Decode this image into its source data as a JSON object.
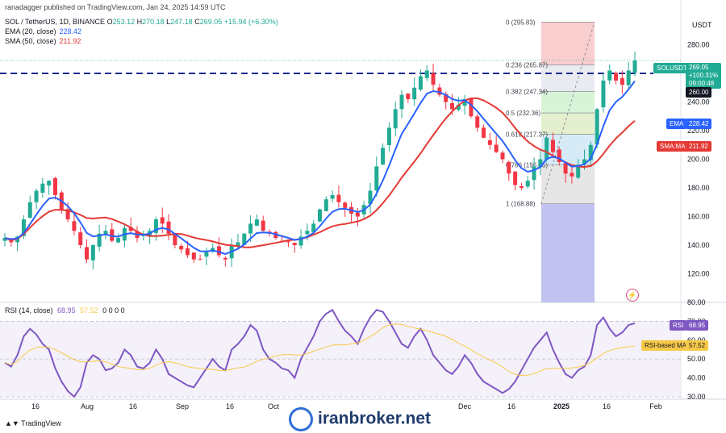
{
  "header": {
    "credit": "ranadagger published on TradingView.com, Jan 24, 2025 14:59 UTC",
    "symbol": "SOL / TetherUS, 1D, BINANCE",
    "ohlc": [
      {
        "label": "O",
        "value": "253.12"
      },
      {
        "label": "H",
        "value": "270.18"
      },
      {
        "label": "L",
        "value": "247.18"
      },
      {
        "label": "C",
        "value": "269.05"
      }
    ],
    "change": "+15.94 (+6.30%)",
    "ema_label": "EMA (20, close)",
    "ema_value": "228.42",
    "sma_label": "SMA (50, close)",
    "sma_value": "211.92",
    "currency": "USDT"
  },
  "price_tags": {
    "symbol_tag": "SOLUSDT",
    "last_price": "269.05",
    "change_pct": "+100.31%",
    "countdown": "09:00:48",
    "level_260": "260.00",
    "ema_tag": "EMA",
    "ema_value": "228.42",
    "sma_tag": "SMA:MA",
    "sma_value": "211.92",
    "rsi_tag": "RSI",
    "rsi_value": "68.95",
    "rsi_ma_tag": "RSI-based MA",
    "rsi_ma_value": "57.52"
  },
  "rsi_header": {
    "label": "RSI (14, close)",
    "rsi": "68.95",
    "ma": "57.52",
    "extra": "0 0 0 0"
  },
  "footer": {
    "tradingview": "TradingView",
    "watermark": "iranbroker.net"
  },
  "colors": {
    "up": "#22ab94",
    "down": "#f23645",
    "ema": "#2962ff",
    "sma": "#e53935",
    "rsi": "#7e57c2",
    "rsi_ma": "#f7c948"
  },
  "chart_data": [
    {
      "type": "candlestick",
      "title": "SOL / TetherUS, 1D, BINANCE",
      "ylabel": "USDT",
      "ylim": [
        100,
        300
      ],
      "yticks": [
        120,
        140,
        160,
        180,
        200,
        220,
        240,
        260,
        280
      ],
      "xticks": [
        "16",
        "Aug",
        "16",
        "Sep",
        "16",
        "Oct",
        "Dec",
        "16",
        "2025",
        "16",
        "Feb"
      ],
      "x_range": "Jul 8, 2024 – Jan 24, 2025 (daily)",
      "ohlc_close_path": [
        145,
        142,
        146,
        158,
        170,
        178,
        183,
        185,
        175,
        165,
        158,
        150,
        140,
        130,
        140,
        148,
        150,
        143,
        145,
        152,
        150,
        145,
        147,
        150,
        158,
        155,
        148,
        140,
        137,
        133,
        130,
        130,
        135,
        138,
        133,
        130,
        140,
        142,
        148,
        155,
        158,
        150,
        148,
        145,
        143,
        142,
        140,
        146,
        150,
        155,
        165,
        172,
        175,
        170,
        166,
        162,
        160,
        168,
        178,
        195,
        208,
        222,
        235,
        245,
        242,
        250,
        258,
        262,
        252,
        245,
        240,
        235,
        238,
        242,
        230,
        222,
        215,
        210,
        205,
        200,
        190,
        182,
        180,
        185,
        195,
        200,
        215,
        205,
        198,
        190,
        188,
        196,
        200,
        210,
        235,
        255,
        262,
        255,
        252,
        262,
        269.05
      ],
      "dashed_resistance": 260,
      "fibonacci": [
        {
          "ratio": "0",
          "price": 295.83
        },
        {
          "ratio": "0.236",
          "price": 265.87
        },
        {
          "ratio": "0.382",
          "price": 247.34
        },
        {
          "ratio": "0.5",
          "price": 232.36
        },
        {
          "ratio": "0.618",
          "price": 217.37
        },
        {
          "ratio": "0.786",
          "price": 196.05
        },
        {
          "ratio": "1",
          "price": 168.88
        }
      ],
      "series": [
        {
          "name": "EMA (20, close)",
          "last": 228.42
        },
        {
          "name": "SMA (50, close)",
          "last": 211.92
        }
      ]
    },
    {
      "type": "line",
      "title": "RSI (14, close)",
      "ylim": [
        30,
        80
      ],
      "yticks": [
        30,
        40,
        50,
        60,
        70,
        80
      ],
      "bands": [
        30,
        70
      ],
      "series": [
        {
          "name": "RSI",
          "last": 68.95,
          "values": [
            48,
            46,
            52,
            62,
            66,
            63,
            58,
            55,
            45,
            38,
            33,
            30,
            35,
            48,
            52,
            50,
            44,
            45,
            48,
            55,
            52,
            46,
            45,
            48,
            55,
            50,
            42,
            40,
            38,
            36,
            35,
            40,
            45,
            50,
            46,
            44,
            55,
            58,
            62,
            68,
            65,
            55,
            50,
            48,
            45,
            44,
            40,
            50,
            56,
            62,
            70,
            74,
            76,
            70,
            65,
            62,
            58,
            66,
            72,
            76,
            75,
            70,
            64,
            58,
            56,
            62,
            66,
            60,
            52,
            48,
            44,
            42,
            46,
            52,
            48,
            42,
            38,
            36,
            34,
            32,
            34,
            38,
            44,
            50,
            56,
            60,
            64,
            55,
            48,
            42,
            40,
            44,
            46,
            52,
            68,
            72,
            66,
            62,
            64,
            68,
            68.95
          ]
        },
        {
          "name": "RSI-based MA",
          "last": 57.52
        }
      ]
    }
  ]
}
